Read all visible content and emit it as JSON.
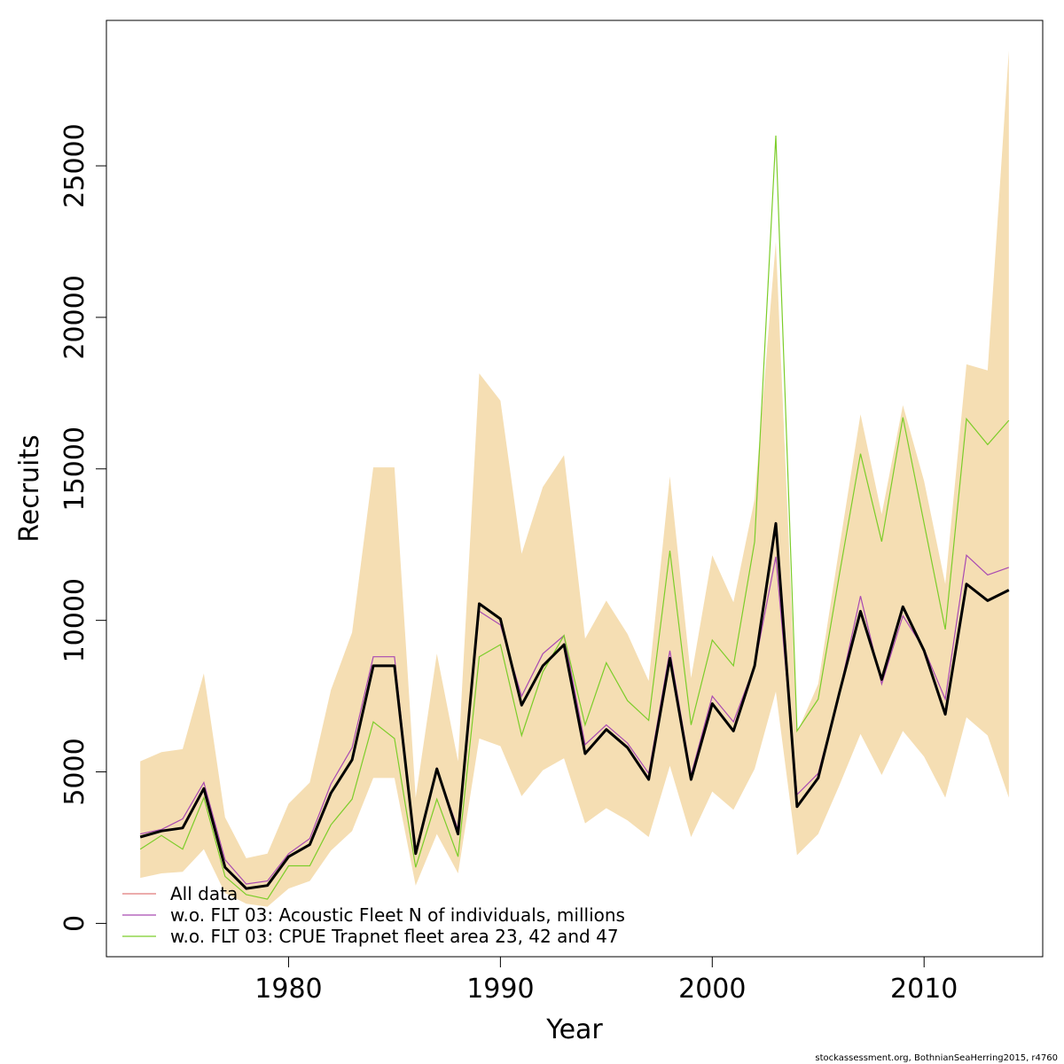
{
  "chart_data": {
    "type": "line",
    "title": "",
    "xlabel": "Year",
    "ylabel": "Recruits",
    "xlim": [
      1971.4,
      2015.6
    ],
    "ylim": [
      -1100,
      29800
    ],
    "x_ticks": [
      1980,
      1990,
      2000,
      2010
    ],
    "y_ticks": [
      0,
      5000,
      10000,
      15000,
      20000,
      25000
    ],
    "x_tick_labels": [
      "1980",
      "1990",
      "2000",
      "2010"
    ],
    "y_tick_labels": [
      "0",
      "5000",
      "10000",
      "15000",
      "20000",
      "25000"
    ],
    "grid": false,
    "legend_position": "bottom-left",
    "band_color": "#f5deb3",
    "x": [
      1973,
      1974,
      1975,
      1976,
      1977,
      1978,
      1979,
      1980,
      1981,
      1982,
      1983,
      1984,
      1985,
      1986,
      1987,
      1988,
      1989,
      1990,
      1991,
      1992,
      1993,
      1994,
      1995,
      1996,
      1997,
      1998,
      1999,
      2000,
      2001,
      2002,
      2003,
      2004,
      2005,
      2006,
      2007,
      2008,
      2009,
      2010,
      2011,
      2012,
      2013,
      2014
    ],
    "band": {
      "upper": [
        5350,
        5650,
        5750,
        8250,
        3500,
        2150,
        2300,
        3950,
        4650,
        7700,
        9600,
        15050,
        15050,
        4150,
        8900,
        5350,
        18150,
        17250,
        12200,
        14400,
        15450,
        9400,
        10650,
        9550,
        8000,
        14750,
        8100,
        12150,
        10600,
        14000,
        22500,
        6300,
        7900,
        12400,
        16800,
        13500,
        17100,
        14600,
        11200,
        18450,
        18250,
        28800
      ],
      "lower": [
        1500,
        1650,
        1700,
        2450,
        1000,
        650,
        550,
        1150,
        1400,
        2400,
        3050,
        4800,
        4800,
        1250,
        2950,
        1650,
        6100,
        5850,
        4200,
        5050,
        5450,
        3300,
        3800,
        3400,
        2850,
        5200,
        2850,
        4350,
        3750,
        5100,
        7650,
        2250,
        2950,
        4550,
        6250,
        4900,
        6350,
        5500,
        4150,
        6800,
        6200,
        4150
      ]
    },
    "series": [
      {
        "name": "All data",
        "color": "#e07a7a",
        "values": [
          2850,
          3050,
          3150,
          4450,
          1850,
          1150,
          1250,
          2200,
          2600,
          4300,
          5400,
          8500,
          8500,
          2300,
          5100,
          2950,
          10550,
          10050,
          7200,
          8500,
          9200,
          5600,
          6400,
          5800,
          4750,
          8750,
          4750,
          7250,
          6350,
          8500,
          13200,
          3850,
          4800,
          7600,
          10300,
          8050,
          10450,
          9000,
          6900,
          11200,
          10650,
          11000
        ]
      },
      {
        "name": "w.o. FLT 03: Acoustic Fleet   N of individuals, millions",
        "color": "#a94ab2",
        "values": [
          2950,
          3100,
          3450,
          4650,
          2100,
          1300,
          1400,
          2300,
          2800,
          4600,
          5800,
          8800,
          8800,
          2300,
          5100,
          3100,
          10300,
          9850,
          7500,
          8900,
          9500,
          5900,
          6550,
          5950,
          4950,
          9000,
          4900,
          7500,
          6650,
          8500,
          12100,
          4250,
          4950,
          7600,
          10800,
          7900,
          10150,
          9050,
          7400,
          12150,
          11500,
          11750
        ]
      },
      {
        "name": "w.o. FLT 03: CPUE Trapnet fleet area 23, 42 and 47",
        "color": "#7ccd2a",
        "values": [
          2450,
          2900,
          2450,
          4150,
          1550,
          950,
          800,
          1900,
          1900,
          3250,
          4100,
          6650,
          6100,
          1850,
          4100,
          2200,
          8800,
          9200,
          6200,
          8300,
          9500,
          6550,
          8600,
          7350,
          6700,
          12300,
          6550,
          9350,
          8500,
          12600,
          26000,
          6350,
          7400,
          11500,
          15500,
          12600,
          16700,
          13200,
          9700,
          16650,
          15800,
          16600
        ]
      }
    ],
    "bold_series": {
      "color": "#000000",
      "values": [
        2850,
        3050,
        3150,
        4450,
        1850,
        1150,
        1250,
        2200,
        2600,
        4300,
        5400,
        8500,
        8500,
        2300,
        5100,
        2950,
        10550,
        10050,
        7200,
        8500,
        9200,
        5600,
        6400,
        5800,
        4750,
        8750,
        4750,
        7250,
        6350,
        8500,
        13200,
        3850,
        4800,
        7600,
        10300,
        8050,
        10450,
        9000,
        6900,
        11200,
        10650,
        11000
      ]
    }
  },
  "footer": {
    "source_text": "stockassessment.org, BothnianSeaHerring2015, r4760"
  }
}
